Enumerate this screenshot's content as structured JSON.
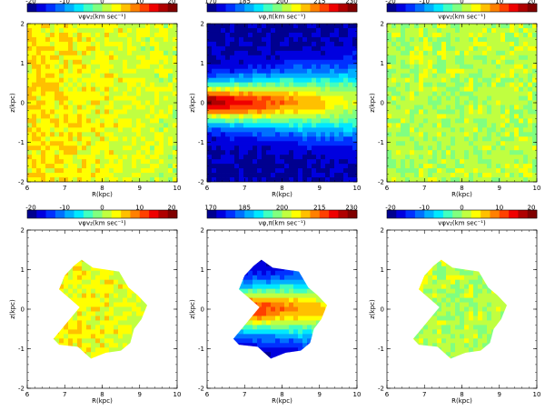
{
  "chart_data": [
    {
      "type": "heatmap",
      "panel": "top-left",
      "colorbar": {
        "ticks": [
          "-20",
          "-10",
          "0",
          "10",
          "20"
        ],
        "range": [
          -20,
          20
        ]
      },
      "colorbar_label": "vφv₂(km sec⁻¹)",
      "xlabel": "R(kpc)",
      "ylabel": "z(kpc)",
      "xticks": [
        "6",
        "7",
        "8",
        "9",
        "10"
      ],
      "yticks": [
        "-2",
        "-1",
        "0",
        "1",
        "2"
      ],
      "xlim": [
        6,
        10
      ],
      "ylim": [
        -2,
        2
      ],
      "field": "mixed_pos",
      "mask": "none"
    },
    {
      "type": "heatmap",
      "panel": "top-center",
      "colorbar": {
        "ticks": [
          "170",
          "185",
          "200",
          "215",
          "230"
        ],
        "range": [
          170,
          230
        ]
      },
      "colorbar_label": "vφ,π(km sec⁻¹)",
      "xlabel": "R(kpc)",
      "ylabel": "z(kpc)",
      "xticks": [
        "6",
        "7",
        "8",
        "9",
        "10"
      ],
      "yticks": [
        "-2",
        "-1",
        "0",
        "1",
        "2"
      ],
      "xlim": [
        6,
        10
      ],
      "ylim": [
        -2,
        2
      ],
      "field": "vphi",
      "mask": "none"
    },
    {
      "type": "heatmap",
      "panel": "top-right",
      "colorbar": {
        "ticks": [
          "-20",
          "-10",
          "0",
          "10",
          "20"
        ],
        "range": [
          -20,
          20
        ]
      },
      "colorbar_label": "vφv₂(km sec⁻¹)",
      "xlabel": "R(kpc)",
      "ylabel": "z(kpc)",
      "xticks": [
        "6",
        "7",
        "8",
        "9",
        "10"
      ],
      "yticks": [
        "-2",
        "-1",
        "0",
        "1",
        "2"
      ],
      "xlim": [
        6,
        10
      ],
      "ylim": [
        -2,
        2
      ],
      "field": "mixed_low",
      "mask": "none"
    },
    {
      "type": "heatmap",
      "panel": "bottom-left",
      "colorbar": {
        "ticks": [
          "-20",
          "-10",
          "0",
          "10",
          "20"
        ],
        "range": [
          -20,
          20
        ]
      },
      "colorbar_label": "vφv₂(km sec⁻¹)",
      "xlabel": "R(kpc)",
      "ylabel": "z(kpc)",
      "xticks": [
        "6",
        "7",
        "8",
        "9",
        "10"
      ],
      "yticks": [
        "-2",
        "-1",
        "0",
        "1",
        "2"
      ],
      "xlim": [
        6,
        10
      ],
      "ylim": [
        -2,
        2
      ],
      "field": "mixed_pos",
      "mask": "footprint"
    },
    {
      "type": "heatmap",
      "panel": "bottom-center",
      "colorbar": {
        "ticks": [
          "170",
          "185",
          "200",
          "215",
          "230"
        ],
        "range": [
          170,
          230
        ]
      },
      "colorbar_label": "vφ,π(km sec⁻¹)",
      "xlabel": "R(kpc)",
      "ylabel": "z(kpc)",
      "xticks": [
        "6",
        "7",
        "8",
        "9",
        "10"
      ],
      "yticks": [
        "-2",
        "-1",
        "0",
        "1",
        "2"
      ],
      "xlim": [
        6,
        10
      ],
      "ylim": [
        -2,
        2
      ],
      "field": "vphi",
      "mask": "footprint"
    },
    {
      "type": "heatmap",
      "panel": "bottom-right",
      "colorbar": {
        "ticks": [
          "-20",
          "-10",
          "0",
          "10",
          "20"
        ],
        "range": [
          -20,
          20
        ]
      },
      "colorbar_label": "vφv₂(km sec⁻¹)",
      "xlabel": "R(kpc)",
      "ylabel": "z(kpc)",
      "xticks": [
        "6",
        "7",
        "8",
        "9",
        "10"
      ],
      "yticks": [
        "-2",
        "-1",
        "0",
        "1",
        "2"
      ],
      "xlim": [
        6,
        10
      ],
      "ylim": [
        -2,
        2
      ],
      "field": "mixed_low",
      "mask": "footprint"
    }
  ],
  "footprint_polygon_data_units": [
    [
      7.25,
      1.1
    ],
    [
      7.45,
      1.25
    ],
    [
      7.75,
      1.05
    ],
    [
      8.1,
      1.0
    ],
    [
      8.45,
      0.95
    ],
    [
      8.7,
      0.55
    ],
    [
      8.95,
      0.35
    ],
    [
      9.2,
      0.1
    ],
    [
      9.05,
      -0.25
    ],
    [
      8.85,
      -0.5
    ],
    [
      8.75,
      -0.85
    ],
    [
      8.5,
      -1.05
    ],
    [
      8.1,
      -1.1
    ],
    [
      7.7,
      -1.25
    ],
    [
      7.35,
      -0.95
    ],
    [
      6.85,
      -0.9
    ],
    [
      6.7,
      -0.75
    ],
    [
      7.05,
      -0.35
    ],
    [
      7.4,
      0.05
    ],
    [
      6.85,
      0.5
    ],
    [
      7.0,
      0.85
    ]
  ]
}
